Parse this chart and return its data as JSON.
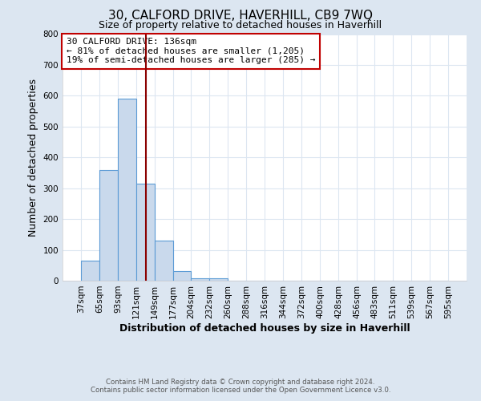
{
  "title": "30, CALFORD DRIVE, HAVERHILL, CB9 7WQ",
  "subtitle": "Size of property relative to detached houses in Haverhill",
  "xlabel": "Distribution of detached houses by size in Haverhill",
  "ylabel": "Number of detached properties",
  "bin_edges": [
    37,
    65,
    93,
    121,
    149,
    177,
    204,
    232,
    260,
    288,
    316,
    344,
    372,
    400,
    428,
    456,
    483,
    511,
    539,
    567,
    595
  ],
  "bar_heights": [
    65,
    358,
    591,
    315,
    130,
    30,
    8,
    8,
    0,
    0,
    0,
    0,
    0,
    0,
    0,
    0,
    0,
    0,
    0,
    0
  ],
  "bar_color": "#c9d9ec",
  "bar_edge_color": "#5b9bd5",
  "vline_x": 136,
  "vline_color": "#8b0000",
  "ylim": [
    0,
    800
  ],
  "yticks": [
    0,
    100,
    200,
    300,
    400,
    500,
    600,
    700,
    800
  ],
  "annotation_title": "30 CALFORD DRIVE: 136sqm",
  "annotation_line2": "← 81% of detached houses are smaller (1,205)",
  "annotation_line3": "19% of semi-detached houses are larger (285) →",
  "annotation_box_color": "#ffffff",
  "annotation_box_edge": "#c00000",
  "footer_line1": "Contains HM Land Registry data © Crown copyright and database right 2024.",
  "footer_line2": "Contains public sector information licensed under the Open Government Licence v3.0.",
  "outer_background": "#dce6f1",
  "plot_background": "#ffffff",
  "grid_color": "#dce6f1",
  "title_fontsize": 11,
  "subtitle_fontsize": 9,
  "axis_label_fontsize": 9,
  "tick_label_fontsize": 7.5
}
